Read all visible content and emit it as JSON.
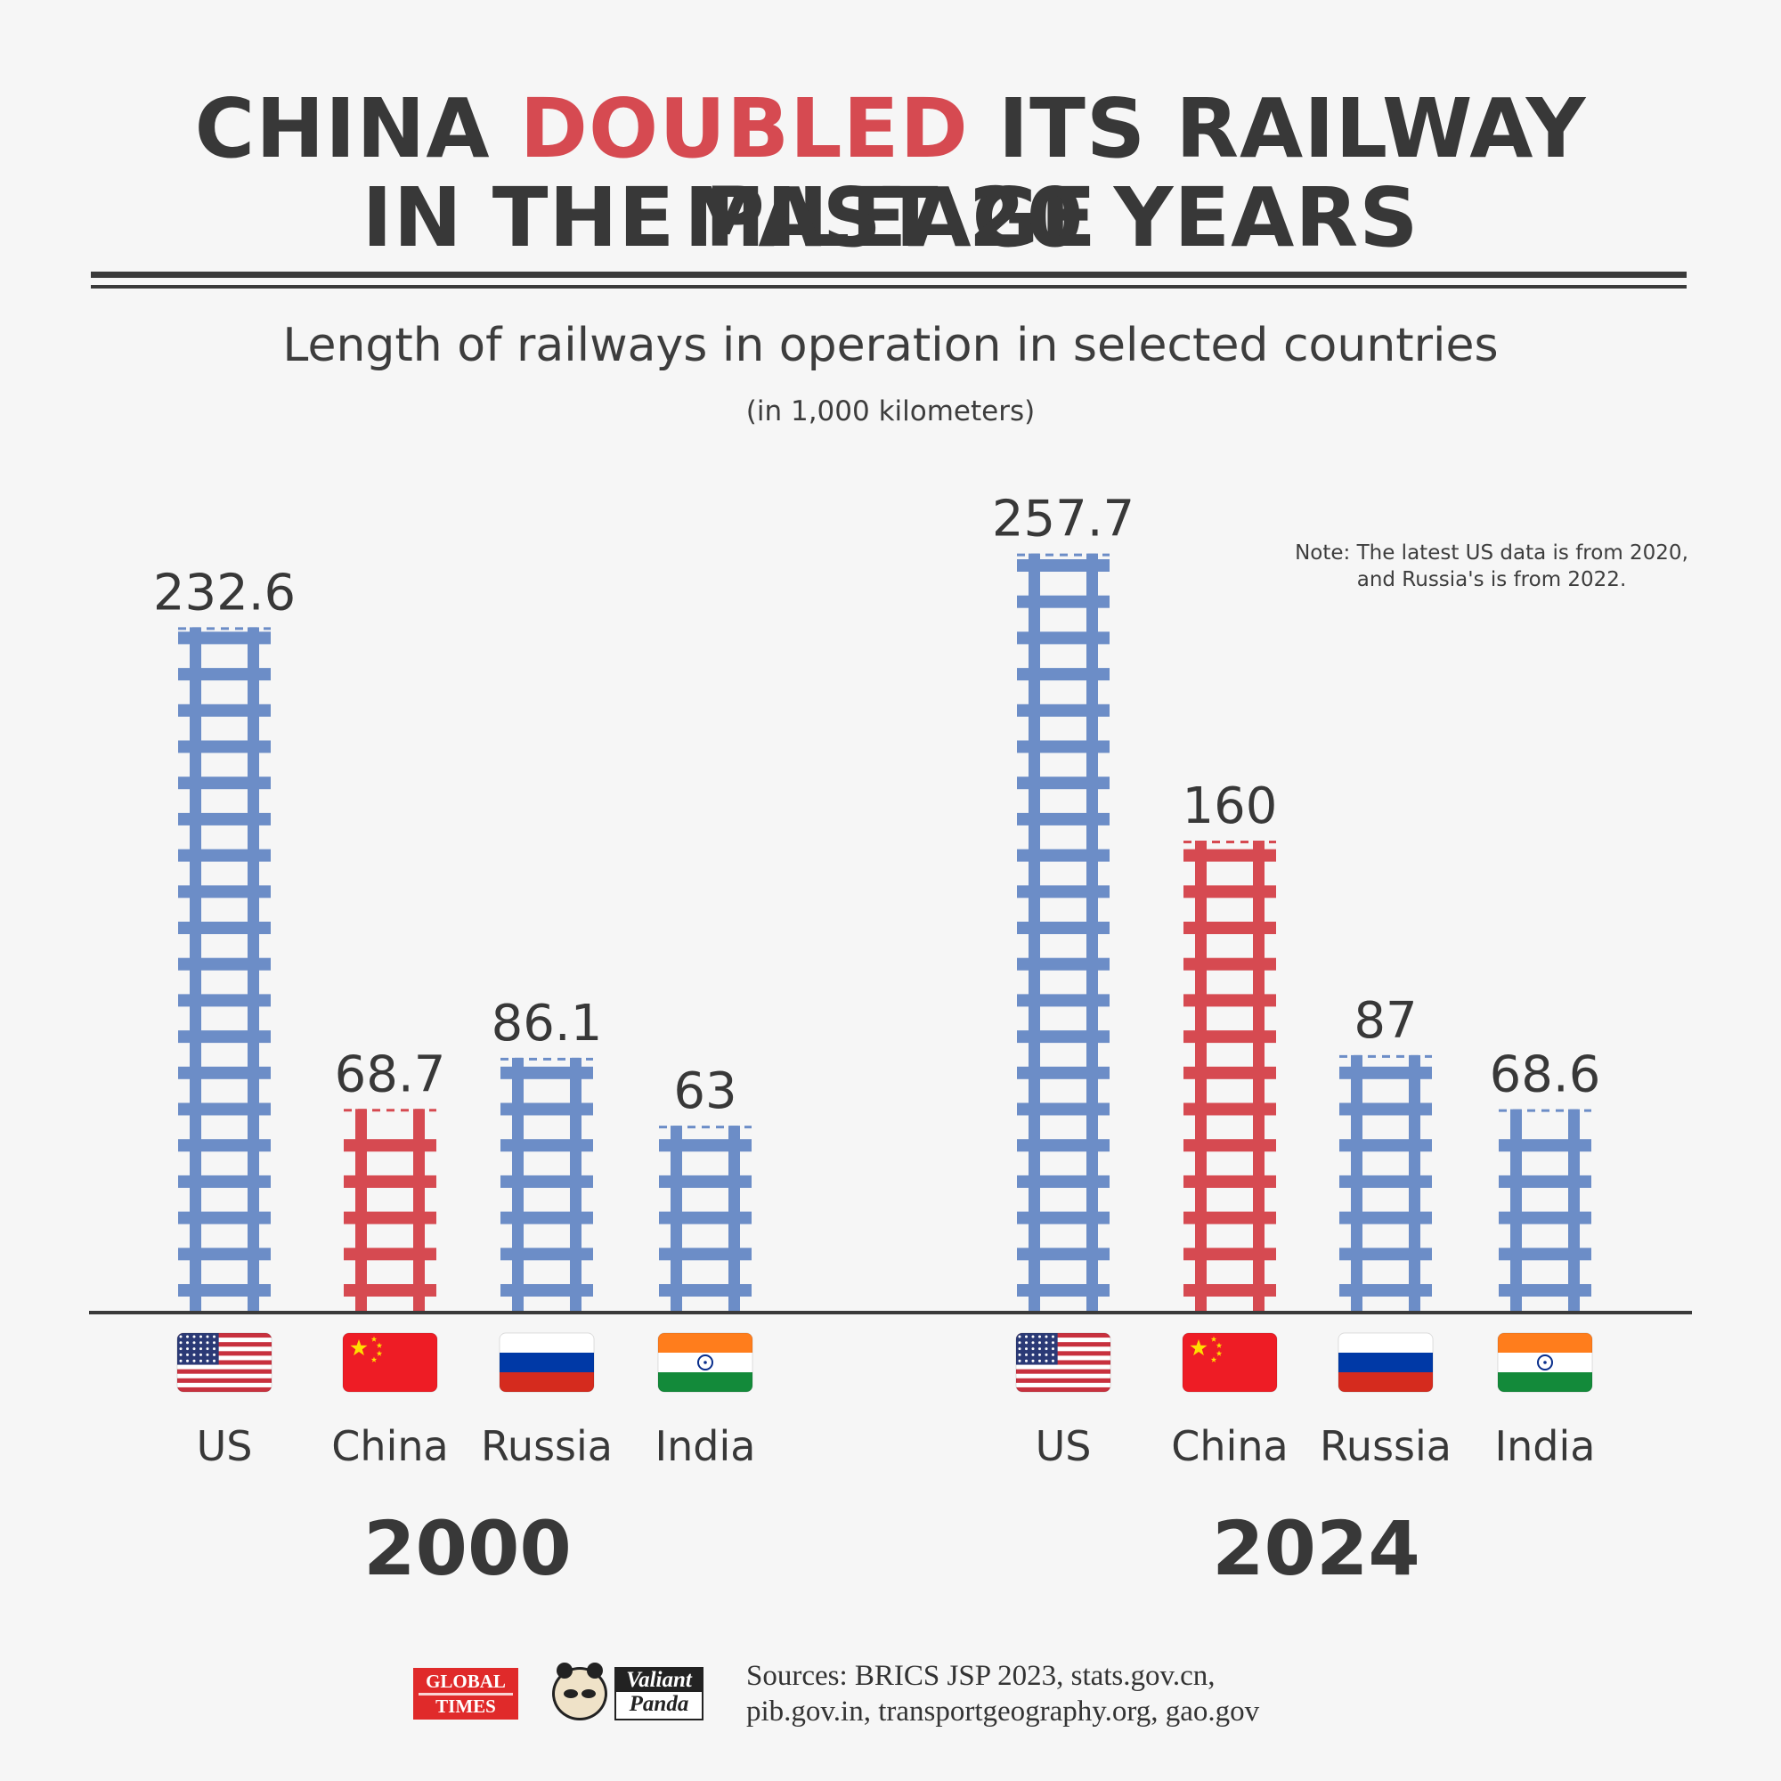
{
  "header": {
    "title_part1": "CHINA ",
    "title_highlight": "DOUBLED",
    "title_part2": " ITS RAILWAY MILEAGE",
    "title_line2": "IN THE PAST 20 YEARS"
  },
  "chart_data": {
    "type": "bar",
    "title": "Length of railways in operation in selected countries",
    "unit": "(in 1,000 kilometers)",
    "note_line1": "Note: The latest US data is from 2020,",
    "note_line2": "and Russia's is from 2022.",
    "groups": [
      {
        "year": "2000",
        "bars": [
          {
            "country": "US",
            "value": 232.6,
            "label": "232.6",
            "flag": "us-flag"
          },
          {
            "country": "China",
            "value": 68.7,
            "label": "68.7",
            "flag": "china-flag"
          },
          {
            "country": "Russia",
            "value": 86.1,
            "label": "86.1",
            "flag": "russia-flag"
          },
          {
            "country": "India",
            "value": 63,
            "label": "63",
            "flag": "india-flag"
          }
        ]
      },
      {
        "year": "2024",
        "bars": [
          {
            "country": "US",
            "value": 257.7,
            "label": "257.7",
            "flag": "us-flag"
          },
          {
            "country": "China",
            "value": 160,
            "label": "160",
            "flag": "china-flag"
          },
          {
            "country": "Russia",
            "value": 87,
            "label": "87",
            "flag": "russia-flag"
          },
          {
            "country": "India",
            "value": 68.6,
            "label": "68.6",
            "flag": "india-flag"
          }
        ]
      }
    ],
    "colors": {
      "highlight": "#d64a51",
      "default": "#6c8dc7",
      "axis": "#3a3a3a"
    }
  },
  "footer": {
    "sources_line1": "Sources: BRICS JSP 2023, stats.gov.cn,",
    "sources_line2": "pib.gov.in, transportgeography.org, gao.gov",
    "logo_gt_line1": "GLOBAL",
    "logo_gt_line2": "TIMES",
    "logo_vp_line1": "Valiant",
    "logo_vp_line2": "Panda"
  }
}
